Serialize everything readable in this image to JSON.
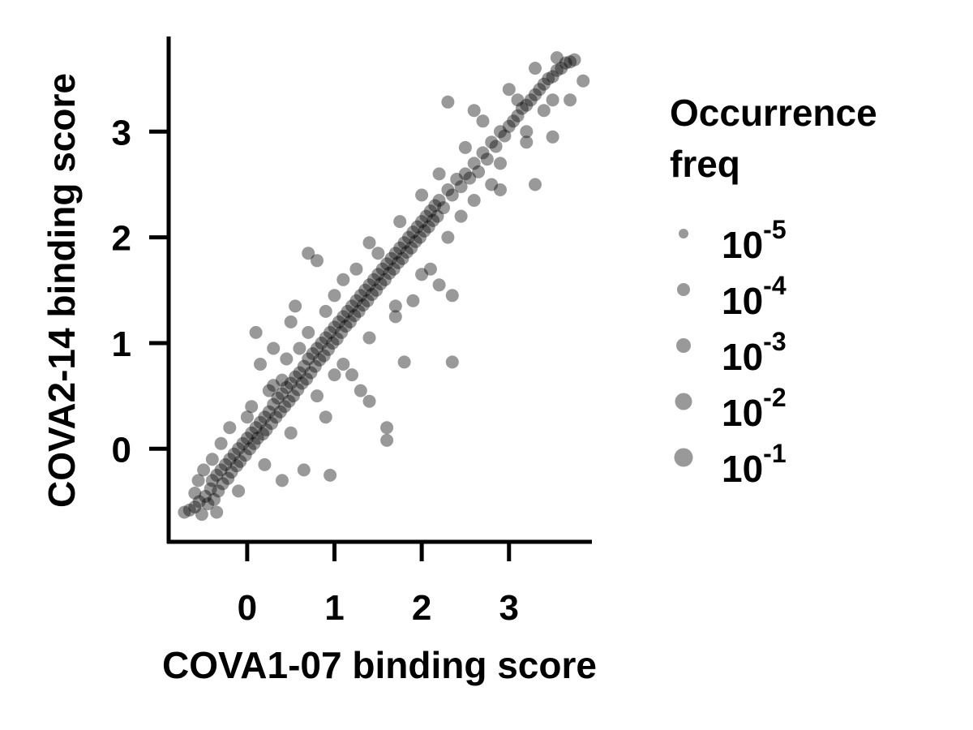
{
  "chart_data": {
    "type": "scatter",
    "xlabel": "COVA1-07 binding score",
    "ylabel": "COVA2-14 binding score",
    "x_ticks": [
      "0",
      "1",
      "2",
      "3"
    ],
    "y_ticks": [
      "0",
      "1",
      "2",
      "3"
    ],
    "xlim": [
      -0.9,
      3.95
    ],
    "ylim": [
      -0.88,
      3.9
    ],
    "grid": false,
    "point_color": "#000000",
    "point_opacity": 0.4,
    "legend": {
      "placement": "right",
      "title": [
        "Occurrence",
        "freq"
      ],
      "entries": [
        {
          "base": "10",
          "exp": "-5",
          "freq": 1e-05
        },
        {
          "base": "10",
          "exp": "-4",
          "freq": 0.0001
        },
        {
          "base": "10",
          "exp": "-3",
          "freq": 0.001
        },
        {
          "base": "10",
          "exp": "-2",
          "freq": 0.01
        },
        {
          "base": "10",
          "exp": "-1",
          "freq": 0.1
        }
      ],
      "marker_color": "#999999"
    },
    "points": [
      [
        -0.72,
        -0.6
      ],
      [
        -0.66,
        -0.58
      ],
      [
        -0.6,
        -0.55
      ],
      [
        -0.55,
        -0.5
      ],
      [
        -0.52,
        -0.62
      ],
      [
        -0.48,
        -0.45
      ],
      [
        -0.45,
        -0.52
      ],
      [
        -0.42,
        -0.38
      ],
      [
        -0.4,
        -0.3
      ],
      [
        -0.38,
        -0.48
      ],
      [
        -0.35,
        -0.25
      ],
      [
        -0.33,
        -0.4
      ],
      [
        -0.3,
        -0.2
      ],
      [
        -0.28,
        -0.33
      ],
      [
        -0.25,
        -0.15
      ],
      [
        -0.22,
        -0.28
      ],
      [
        -0.2,
        -0.1
      ],
      [
        -0.18,
        -0.22
      ],
      [
        -0.15,
        -0.05
      ],
      [
        -0.12,
        -0.16
      ],
      [
        -0.1,
        0.0
      ],
      [
        -0.08,
        -0.12
      ],
      [
        -0.05,
        0.05
      ],
      [
        -0.02,
        -0.06
      ],
      [
        0.0,
        0.1
      ],
      [
        0.03,
        0.0
      ],
      [
        0.05,
        0.15
      ],
      [
        0.08,
        0.05
      ],
      [
        0.1,
        0.2
      ],
      [
        0.12,
        0.1
      ],
      [
        0.15,
        0.25
      ],
      [
        0.18,
        0.14
      ],
      [
        0.2,
        0.3
      ],
      [
        0.22,
        0.18
      ],
      [
        0.25,
        0.35
      ],
      [
        0.28,
        0.24
      ],
      [
        0.3,
        0.42
      ],
      [
        0.33,
        0.3
      ],
      [
        0.35,
        0.48
      ],
      [
        0.38,
        0.35
      ],
      [
        0.4,
        0.52
      ],
      [
        0.43,
        0.4
      ],
      [
        0.45,
        0.58
      ],
      [
        0.48,
        0.45
      ],
      [
        0.5,
        0.62
      ],
      [
        0.53,
        0.5
      ],
      [
        0.55,
        0.68
      ],
      [
        0.58,
        0.56
      ],
      [
        0.6,
        0.72
      ],
      [
        0.63,
        0.62
      ],
      [
        0.65,
        0.78
      ],
      [
        0.68,
        0.66
      ],
      [
        0.7,
        0.85
      ],
      [
        0.73,
        0.72
      ],
      [
        0.75,
        0.9
      ],
      [
        0.78,
        0.78
      ],
      [
        0.8,
        0.95
      ],
      [
        0.83,
        0.84
      ],
      [
        0.85,
        1.0
      ],
      [
        0.88,
        0.88
      ],
      [
        0.9,
        1.05
      ],
      [
        0.93,
        0.94
      ],
      [
        0.95,
        1.1
      ],
      [
        0.98,
        1.0
      ],
      [
        1.0,
        1.15
      ],
      [
        1.03,
        1.04
      ],
      [
        1.05,
        1.2
      ],
      [
        1.08,
        1.1
      ],
      [
        1.1,
        1.25
      ],
      [
        1.13,
        1.16
      ],
      [
        1.15,
        1.3
      ],
      [
        1.18,
        1.2
      ],
      [
        1.2,
        1.35
      ],
      [
        1.23,
        1.26
      ],
      [
        1.25,
        1.4
      ],
      [
        1.28,
        1.3
      ],
      [
        1.3,
        1.45
      ],
      [
        1.33,
        1.36
      ],
      [
        1.35,
        1.5
      ],
      [
        1.38,
        1.4
      ],
      [
        1.4,
        1.55
      ],
      [
        1.43,
        1.46
      ],
      [
        1.45,
        1.6
      ],
      [
        1.48,
        1.5
      ],
      [
        1.5,
        1.65
      ],
      [
        1.53,
        1.56
      ],
      [
        1.55,
        1.7
      ],
      [
        1.58,
        1.6
      ],
      [
        1.6,
        1.75
      ],
      [
        1.63,
        1.66
      ],
      [
        1.65,
        1.8
      ],
      [
        1.68,
        1.7
      ],
      [
        1.7,
        1.85
      ],
      [
        1.73,
        1.76
      ],
      [
        1.75,
        1.9
      ],
      [
        1.78,
        1.8
      ],
      [
        1.8,
        1.95
      ],
      [
        1.83,
        1.86
      ],
      [
        1.85,
        2.0
      ],
      [
        1.88,
        1.9
      ],
      [
        1.9,
        2.05
      ],
      [
        1.93,
        1.96
      ],
      [
        1.95,
        2.1
      ],
      [
        1.98,
        2.0
      ],
      [
        2.0,
        2.15
      ],
      [
        2.03,
        2.06
      ],
      [
        2.05,
        2.2
      ],
      [
        2.08,
        2.1
      ],
      [
        2.1,
        2.25
      ],
      [
        2.13,
        2.16
      ],
      [
        2.15,
        2.3
      ],
      [
        2.18,
        2.2
      ],
      [
        2.2,
        2.35
      ],
      [
        2.25,
        2.28
      ],
      [
        2.3,
        2.45
      ],
      [
        2.35,
        2.4
      ],
      [
        2.4,
        2.55
      ],
      [
        2.45,
        2.48
      ],
      [
        2.5,
        2.6
      ],
      [
        2.55,
        2.56
      ],
      [
        2.6,
        2.7
      ],
      [
        2.65,
        2.62
      ],
      [
        2.7,
        2.8
      ],
      [
        2.75,
        2.74
      ],
      [
        2.8,
        2.9
      ],
      [
        2.85,
        2.86
      ],
      [
        2.9,
        3.0
      ],
      [
        2.95,
        2.96
      ],
      [
        3.0,
        3.05
      ],
      [
        3.05,
        3.1
      ],
      [
        3.1,
        3.15
      ],
      [
        3.15,
        3.22
      ],
      [
        3.2,
        3.25
      ],
      [
        3.25,
        3.3
      ],
      [
        3.3,
        3.35
      ],
      [
        3.35,
        3.4
      ],
      [
        3.4,
        3.45
      ],
      [
        3.45,
        3.5
      ],
      [
        3.5,
        3.52
      ],
      [
        3.55,
        3.58
      ],
      [
        3.6,
        3.6
      ],
      [
        3.65,
        3.65
      ],
      [
        3.7,
        3.66
      ],
      [
        3.75,
        3.68
      ],
      [
        -0.5,
        -0.2
      ],
      [
        -0.3,
        0.05
      ],
      [
        0.0,
        0.3
      ],
      [
        0.3,
        0.6
      ],
      [
        0.6,
        0.95
      ],
      [
        0.9,
        1.3
      ],
      [
        1.1,
        1.6
      ],
      [
        1.4,
        1.95
      ],
      [
        -0.35,
        -0.6
      ],
      [
        -0.1,
        -0.4
      ],
      [
        0.2,
        -0.15
      ],
      [
        0.5,
        0.15
      ],
      [
        0.8,
        0.5
      ],
      [
        1.1,
        0.8
      ],
      [
        1.4,
        1.05
      ],
      [
        1.7,
        1.35
      ],
      [
        2.0,
        1.65
      ],
      [
        2.3,
        2.0
      ],
      [
        2.6,
        2.35
      ],
      [
        2.9,
        2.7
      ],
      [
        3.2,
        3.0
      ],
      [
        3.5,
        3.3
      ],
      [
        0.1,
        1.1
      ],
      [
        0.5,
        1.2
      ],
      [
        0.7,
        1.85
      ],
      [
        0.8,
        1.78
      ],
      [
        1.3,
        0.55
      ],
      [
        1.4,
        0.45
      ],
      [
        1.6,
        0.2
      ],
      [
        1.6,
        0.08
      ],
      [
        1.8,
        0.82
      ],
      [
        2.35,
        0.82
      ],
      [
        2.3,
        3.28
      ],
      [
        2.35,
        1.45
      ],
      [
        3.3,
        2.5
      ],
      [
        3.5,
        2.95
      ],
      [
        2.45,
        2.2
      ],
      [
        1.2,
        0.7
      ],
      [
        0.65,
        -0.2
      ],
      [
        0.95,
        -0.25
      ],
      [
        1.0,
        0.7
      ],
      [
        0.9,
        0.3
      ],
      [
        0.4,
        -0.3
      ],
      [
        2.6,
        3.2
      ],
      [
        2.8,
        2.5
      ],
      [
        3.1,
        3.3
      ],
      [
        0.15,
        0.8
      ],
      [
        0.3,
        0.95
      ],
      [
        0.55,
        1.35
      ],
      [
        0.4,
        0.65
      ],
      [
        1.7,
        1.25
      ],
      [
        1.9,
        1.4
      ],
      [
        2.1,
        1.7
      ],
      [
        2.2,
        1.55
      ],
      [
        -0.6,
        -0.42
      ],
      [
        -0.56,
        -0.3
      ],
      [
        -0.4,
        -0.1
      ],
      [
        -0.2,
        0.2
      ],
      [
        0.05,
        0.4
      ],
      [
        0.25,
        0.55
      ],
      [
        0.45,
        0.85
      ],
      [
        0.7,
        1.1
      ],
      [
        1.0,
        1.45
      ],
      [
        1.25,
        1.7
      ],
      [
        1.5,
        1.85
      ],
      [
        1.75,
        2.15
      ],
      [
        2.0,
        2.4
      ],
      [
        2.2,
        2.6
      ],
      [
        2.5,
        2.85
      ],
      [
        2.7,
        3.1
      ],
      [
        3.0,
        3.4
      ],
      [
        3.3,
        3.6
      ],
      [
        3.55,
        3.7
      ],
      [
        3.85,
        3.48
      ],
      [
        3.7,
        3.3
      ],
      [
        3.4,
        3.2
      ],
      [
        3.2,
        2.9
      ],
      [
        2.9,
        2.45
      ]
    ]
  }
}
